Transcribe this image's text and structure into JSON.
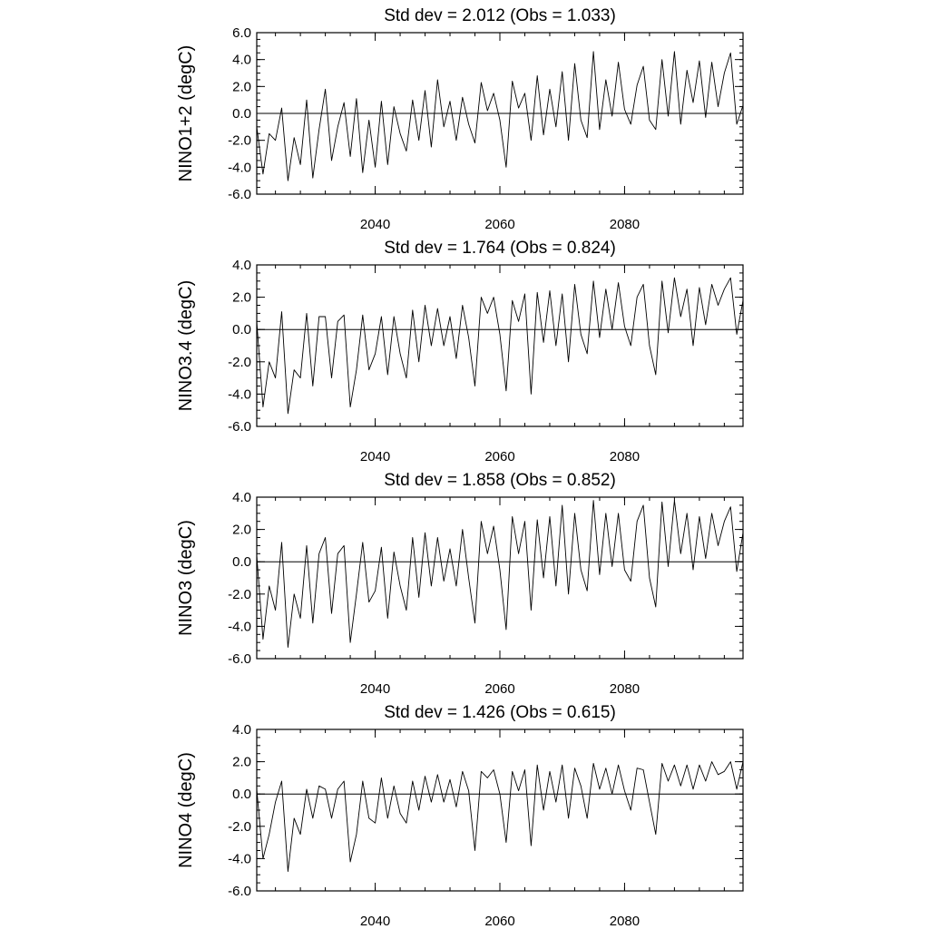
{
  "chart_data": [
    {
      "type": "line",
      "title": "Std dev = 2.012 (Obs = 1.033)",
      "ylabel": "NINO1+2 (degC)",
      "xlim": [
        2021,
        2099
      ],
      "ylim": [
        -6.0,
        6.0
      ],
      "xticks": [
        2040,
        2060,
        2080
      ],
      "yticks": [
        -6.0,
        -4.0,
        -2.0,
        0.0,
        2.0,
        4.0,
        6.0
      ],
      "ytick_labels": [
        "-6.0",
        "-4.0",
        "-2.0",
        "0.0",
        "2.0",
        "4.0",
        "6.0"
      ],
      "xtick_labels": [
        "2040",
        "2060",
        "2080"
      ],
      "zero_line": true,
      "series": [
        {
          "x": [
            2021.0,
            2022.0,
            2023.0,
            2024.0,
            2025.0,
            2026.0,
            2027.0,
            2028.0,
            2029.0,
            2030.0,
            2031.0,
            2032.0,
            2033.0,
            2034.0,
            2035.0,
            2036.0,
            2037.0,
            2038.0,
            2039.0,
            2040.0,
            2041.0,
            2042.0,
            2043.0,
            2044.0,
            2045.0,
            2046.0,
            2047.0,
            2048.0,
            2049.0,
            2050.0,
            2051.0,
            2052.0,
            2053.0,
            2054.0,
            2055.0,
            2056.0,
            2057.0,
            2058.0,
            2059.0,
            2060.0,
            2061.0,
            2062.0,
            2063.0,
            2064.0,
            2065.0,
            2066.0,
            2067.0,
            2068.0,
            2069.0,
            2070.0,
            2071.0,
            2072.0,
            2073.0,
            2074.0,
            2075.0,
            2076.0,
            2077.0,
            2078.0,
            2079.0,
            2080.0,
            2081.0,
            2082.0,
            2083.0,
            2084.0,
            2085.0,
            2086.0,
            2087.0,
            2088.0,
            2089.0,
            2090.0,
            2091.0,
            2092.0,
            2093.0,
            2094.0,
            2095.0,
            2096.0,
            2097.0,
            2098.0,
            2099.0
          ],
          "y": [
            -1.0,
            -4.5,
            -1.5,
            -2.0,
            0.4,
            -5.0,
            -1.8,
            -3.8,
            1.0,
            -4.8,
            -1.2,
            1.8,
            -3.5,
            -1.0,
            0.8,
            -3.2,
            1.1,
            -4.4,
            -0.5,
            -4.0,
            0.9,
            -3.8,
            0.5,
            -1.5,
            -2.8,
            1.0,
            -2.0,
            1.7,
            -2.5,
            2.5,
            -1.0,
            0.9,
            -2.0,
            1.2,
            -0.8,
            -2.2,
            2.3,
            0.2,
            1.5,
            -0.5,
            -4.0,
            2.4,
            0.4,
            1.5,
            -2.0,
            2.8,
            -1.6,
            1.8,
            -1.0,
            3.1,
            -2.0,
            3.7,
            -0.5,
            -1.8,
            4.6,
            -1.2,
            2.5,
            -0.2,
            3.8,
            0.3,
            -0.8,
            2.1,
            3.5,
            -0.5,
            -1.2,
            4.0,
            -0.2,
            4.6,
            -0.8,
            3.2,
            0.8,
            3.9,
            -0.3,
            3.8,
            0.5,
            3.0,
            4.5,
            -0.8,
            0.6
          ]
        }
      ]
    },
    {
      "type": "line",
      "title": "Std dev = 1.764 (Obs = 0.824)",
      "ylabel": "NINO3.4 (degC)",
      "xlim": [
        2021,
        2099
      ],
      "ylim": [
        -6.0,
        4.0
      ],
      "xticks": [
        2040,
        2060,
        2080
      ],
      "yticks": [
        -6.0,
        -4.0,
        -2.0,
        0.0,
        2.0,
        4.0
      ],
      "ytick_labels": [
        "-6.0",
        "-4.0",
        "-2.0",
        "0.0",
        "2.0",
        "4.0"
      ],
      "xtick_labels": [
        "2040",
        "2060",
        "2080"
      ],
      "zero_line": true,
      "series": [
        {
          "x": [
            2021.0,
            2022.0,
            2023.0,
            2024.0,
            2025.0,
            2026.0,
            2027.0,
            2028.0,
            2029.0,
            2030.0,
            2031.0,
            2032.0,
            2033.0,
            2034.0,
            2035.0,
            2036.0,
            2037.0,
            2038.0,
            2039.0,
            2040.0,
            2041.0,
            2042.0,
            2043.0,
            2044.0,
            2045.0,
            2046.0,
            2047.0,
            2048.0,
            2049.0,
            2050.0,
            2051.0,
            2052.0,
            2053.0,
            2054.0,
            2055.0,
            2056.0,
            2057.0,
            2058.0,
            2059.0,
            2060.0,
            2061.0,
            2062.0,
            2063.0,
            2064.0,
            2065.0,
            2066.0,
            2067.0,
            2068.0,
            2069.0,
            2070.0,
            2071.0,
            2072.0,
            2073.0,
            2074.0,
            2075.0,
            2076.0,
            2077.0,
            2078.0,
            2079.0,
            2080.0,
            2081.0,
            2082.0,
            2083.0,
            2084.0,
            2085.0,
            2086.0,
            2087.0,
            2088.0,
            2089.0,
            2090.0,
            2091.0,
            2092.0,
            2093.0,
            2094.0,
            2095.0,
            2096.0,
            2097.0,
            2098.0,
            2099.0
          ],
          "y": [
            0.5,
            -4.8,
            -2.0,
            -3.0,
            1.1,
            -5.2,
            -2.5,
            -3.0,
            1.0,
            -3.5,
            0.8,
            0.8,
            -3.0,
            0.5,
            0.9,
            -4.8,
            -2.5,
            0.9,
            -2.5,
            -1.5,
            0.8,
            -2.8,
            0.8,
            -1.5,
            -3.0,
            1.2,
            -2.0,
            1.5,
            -1.0,
            1.3,
            -1.0,
            0.8,
            -1.8,
            1.5,
            -0.5,
            -3.5,
            2.0,
            1.0,
            2.0,
            -0.3,
            -3.8,
            1.8,
            0.5,
            2.2,
            -4.0,
            2.3,
            -0.8,
            2.4,
            -1.0,
            2.2,
            -2.0,
            2.8,
            -0.3,
            -1.5,
            3.0,
            -0.5,
            2.5,
            0.0,
            2.9,
            0.2,
            -1.0,
            2.0,
            2.8,
            -1.0,
            -2.8,
            3.0,
            -0.2,
            3.2,
            0.8,
            2.5,
            -1.0,
            2.6,
            0.3,
            2.8,
            1.5,
            2.5,
            3.2,
            -0.3,
            1.8
          ]
        }
      ]
    },
    {
      "type": "line",
      "title": "Std dev = 1.858 (Obs = 0.852)",
      "ylabel": "NINO3 (degC)",
      "xlim": [
        2021,
        2099
      ],
      "ylim": [
        -6.0,
        4.0
      ],
      "xticks": [
        2040,
        2060,
        2080
      ],
      "yticks": [
        -6.0,
        -4.0,
        -2.0,
        0.0,
        2.0,
        4.0
      ],
      "ytick_labels": [
        "-6.0",
        "-4.0",
        "-2.0",
        "0.0",
        "2.0",
        "4.0"
      ],
      "xtick_labels": [
        "2040",
        "2060",
        "2080"
      ],
      "zero_line": true,
      "series": [
        {
          "x": [
            2021.0,
            2022.0,
            2023.0,
            2024.0,
            2025.0,
            2026.0,
            2027.0,
            2028.0,
            2029.0,
            2030.0,
            2031.0,
            2032.0,
            2033.0,
            2034.0,
            2035.0,
            2036.0,
            2037.0,
            2038.0,
            2039.0,
            2040.0,
            2041.0,
            2042.0,
            2043.0,
            2044.0,
            2045.0,
            2046.0,
            2047.0,
            2048.0,
            2049.0,
            2050.0,
            2051.0,
            2052.0,
            2053.0,
            2054.0,
            2055.0,
            2056.0,
            2057.0,
            2058.0,
            2059.0,
            2060.0,
            2061.0,
            2062.0,
            2063.0,
            2064.0,
            2065.0,
            2066.0,
            2067.0,
            2068.0,
            2069.0,
            2070.0,
            2071.0,
            2072.0,
            2073.0,
            2074.0,
            2075.0,
            2076.0,
            2077.0,
            2078.0,
            2079.0,
            2080.0,
            2081.0,
            2082.0,
            2083.0,
            2084.0,
            2085.0,
            2086.0,
            2087.0,
            2088.0,
            2089.0,
            2090.0,
            2091.0,
            2092.0,
            2093.0,
            2094.0,
            2095.0,
            2096.0,
            2097.0,
            2098.0,
            2099.0
          ],
          "y": [
            0.4,
            -4.8,
            -1.5,
            -3.0,
            1.2,
            -5.3,
            -2.0,
            -3.5,
            1.0,
            -3.8,
            0.5,
            1.5,
            -3.2,
            0.5,
            1.0,
            -5.0,
            -2.0,
            1.2,
            -2.5,
            -1.8,
            0.9,
            -3.5,
            0.6,
            -1.5,
            -3.0,
            1.5,
            -2.2,
            1.8,
            -1.5,
            1.5,
            -1.2,
            0.8,
            -1.5,
            2.0,
            -1.0,
            -3.8,
            2.5,
            0.5,
            2.2,
            -0.5,
            -4.2,
            2.8,
            0.5,
            2.5,
            -3.0,
            2.6,
            -1.0,
            2.8,
            -1.5,
            3.5,
            -2.0,
            3.0,
            -0.5,
            -1.8,
            3.8,
            -0.8,
            3.0,
            -0.3,
            3.0,
            -0.5,
            -1.2,
            2.5,
            3.5,
            -1.0,
            -2.8,
            3.7,
            -0.3,
            3.8,
            0.5,
            3.0,
            -0.5,
            2.8,
            0.2,
            3.0,
            1.0,
            2.5,
            3.4,
            -0.6,
            1.8
          ]
        }
      ]
    },
    {
      "type": "line",
      "title": "Std dev = 1.426 (Obs = 0.615)",
      "ylabel": "NINO4 (degC)",
      "xlim": [
        2021,
        2099
      ],
      "ylim": [
        -6.0,
        4.0
      ],
      "xticks": [
        2040,
        2060,
        2080
      ],
      "yticks": [
        -6.0,
        -4.0,
        -2.0,
        0.0,
        2.0,
        4.0
      ],
      "ytick_labels": [
        "-6.0",
        "-4.0",
        "-2.0",
        "0.0",
        "2.0",
        "4.0"
      ],
      "xtick_labels": [
        "2040",
        "2060",
        "2080"
      ],
      "zero_line": true,
      "series": [
        {
          "x": [
            2021.0,
            2022.0,
            2023.0,
            2024.0,
            2025.0,
            2026.0,
            2027.0,
            2028.0,
            2029.0,
            2030.0,
            2031.0,
            2032.0,
            2033.0,
            2034.0,
            2035.0,
            2036.0,
            2037.0,
            2038.0,
            2039.0,
            2040.0,
            2041.0,
            2042.0,
            2043.0,
            2044.0,
            2045.0,
            2046.0,
            2047.0,
            2048.0,
            2049.0,
            2050.0,
            2051.0,
            2052.0,
            2053.0,
            2054.0,
            2055.0,
            2056.0,
            2057.0,
            2058.0,
            2059.0,
            2060.0,
            2061.0,
            2062.0,
            2063.0,
            2064.0,
            2065.0,
            2066.0,
            2067.0,
            2068.0,
            2069.0,
            2070.0,
            2071.0,
            2072.0,
            2073.0,
            2074.0,
            2075.0,
            2076.0,
            2077.0,
            2078.0,
            2079.0,
            2080.0,
            2081.0,
            2082.0,
            2083.0,
            2084.0,
            2085.0,
            2086.0,
            2087.0,
            2088.0,
            2089.0,
            2090.0,
            2091.0,
            2092.0,
            2093.0,
            2094.0,
            2095.0,
            2096.0,
            2097.0,
            2098.0,
            2099.0
          ],
          "y": [
            0.3,
            -4.0,
            -2.5,
            -0.5,
            0.8,
            -4.8,
            -1.5,
            -2.5,
            0.3,
            -1.5,
            0.5,
            0.3,
            -1.5,
            0.3,
            0.8,
            -4.2,
            -2.5,
            0.8,
            -1.5,
            -1.8,
            1.0,
            -1.5,
            0.5,
            -1.2,
            -1.8,
            0.8,
            -1.0,
            1.1,
            -0.5,
            1.2,
            -0.5,
            0.9,
            -0.8,
            1.4,
            0.2,
            -3.5,
            1.4,
            1.0,
            1.5,
            0.0,
            -3.0,
            1.4,
            0.2,
            1.5,
            -3.2,
            1.8,
            -1.0,
            1.4,
            -0.5,
            1.8,
            -1.5,
            1.6,
            0.5,
            -1.5,
            1.9,
            0.3,
            1.6,
            0.0,
            1.8,
            0.2,
            -1.0,
            1.6,
            1.5,
            -0.5,
            -2.5,
            1.9,
            0.8,
            1.8,
            0.5,
            1.8,
            0.3,
            1.8,
            0.8,
            2.0,
            1.2,
            1.4,
            2.0,
            0.3,
            2.0
          ]
        }
      ]
    }
  ]
}
